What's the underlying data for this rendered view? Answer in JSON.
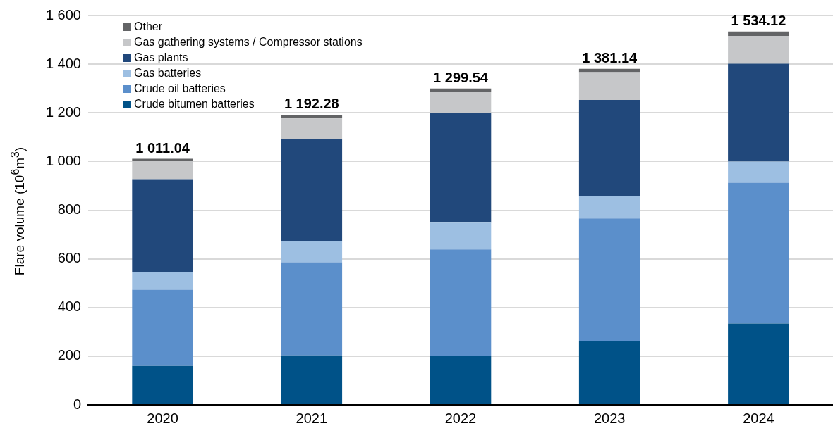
{
  "chart_data": {
    "type": "bar",
    "ylabel": "Flare volume (10$^{6}$m$^{3}$)",
    "categories": [
      "2020",
      "2021",
      "2022",
      "2023",
      "2024"
    ],
    "stacked": true,
    "series": [
      {
        "name": "Crude bitumen batteries",
        "color": "#005288",
        "values": [
          160,
          203,
          200,
          262,
          334
        ]
      },
      {
        "name": "Crude oil batteries",
        "color": "#5b8fcb",
        "values": [
          313,
          383,
          439,
          504,
          579
        ]
      },
      {
        "name": "Gas batteries",
        "color": "#9dbfe2",
        "values": [
          74,
          86,
          110,
          93,
          87
        ]
      },
      {
        "name": "Gas plants",
        "color": "#21487b",
        "values": [
          380,
          421,
          450,
          394,
          402
        ]
      },
      {
        "name": "Gas gathering systems / Compressor stations",
        "color": "#c6c7c9",
        "values": [
          75,
          84,
          86,
          114,
          114
        ]
      },
      {
        "name": "Other",
        "color": "#636466",
        "values": [
          9.04,
          15.28,
          14.54,
          14.14,
          18.12
        ]
      }
    ],
    "totals": [
      "1 011.04",
      "1 192.28",
      "1 299.54",
      "1 381.14",
      "1 534.12"
    ],
    "ylim": [
      0,
      1600
    ],
    "yticks": [
      0,
      200,
      400,
      600,
      800,
      {
        "value": 1000,
        "label": "1 000"
      },
      {
        "value": 1200,
        "label": "1 200"
      },
      {
        "value": 1400,
        "label": "1 400"
      },
      {
        "value": 1600,
        "label": "1 600"
      }
    ],
    "grid": "y",
    "legend": "top left"
  }
}
